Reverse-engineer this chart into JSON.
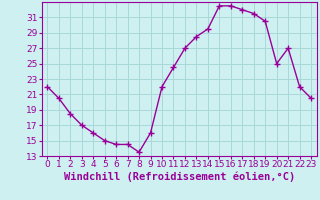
{
  "x": [
    0,
    1,
    2,
    3,
    4,
    5,
    6,
    7,
    8,
    9,
    10,
    11,
    12,
    13,
    14,
    15,
    16,
    17,
    18,
    19,
    20,
    21,
    22,
    23
  ],
  "y": [
    22,
    20.5,
    18.5,
    17,
    16,
    15,
    14.5,
    14.5,
    13.5,
    16,
    22,
    24.5,
    27,
    28.5,
    29.5,
    32.5,
    32.5,
    32,
    31.5,
    30.5,
    25,
    27,
    22,
    20.5
  ],
  "line_color": "#990099",
  "marker": "+",
  "marker_size": 4,
  "bg_color": "#cff0f0",
  "grid_color": "#a8d8d8",
  "xlabel": "Windchill (Refroidissement éolien,°C)",
  "xlabel_color": "#990099",
  "xlabel_fontsize": 7.5,
  "yticks": [
    13,
    15,
    17,
    19,
    21,
    23,
    25,
    27,
    29,
    31
  ],
  "ylim": [
    13,
    33
  ],
  "xlim": [
    -0.5,
    23.5
  ],
  "tick_color": "#990099",
  "tick_fontsize": 6.5,
  "axis_color": "#990099",
  "linewidth": 1.0
}
